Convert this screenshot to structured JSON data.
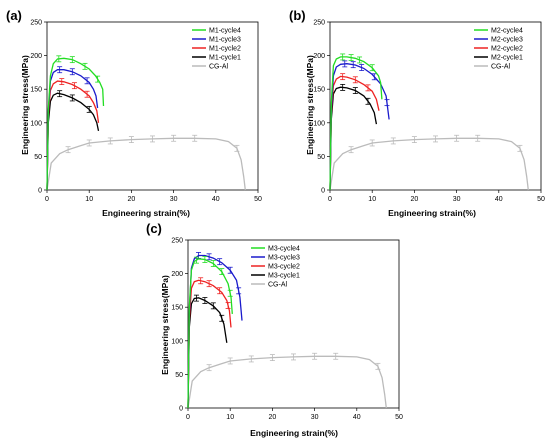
{
  "colors": {
    "cycle4": "#22dd22",
    "cycle3": "#1a1acc",
    "cycle2": "#ee2222",
    "cycle1": "#000000",
    "cg": "#bbbbbb"
  },
  "chart_data": [
    {
      "type": "line",
      "panel_label": "(a)",
      "xlabel": "Engineering strain(%)",
      "ylabel": "Engineering stress(MPa)",
      "xlim": [
        0,
        50
      ],
      "ylim": [
        0,
        250
      ],
      "xticks": [
        "0",
        "10",
        "20",
        "30",
        "40",
        "50"
      ],
      "yticks": [
        "0",
        "50",
        "100",
        "150",
        "200",
        "250"
      ],
      "legend_position": "top-right",
      "series": [
        {
          "name": "M1-cycle4",
          "color_key": "cycle4",
          "errorbars": [
            2.8,
            6,
            9,
            12
          ],
          "x": [
            0,
            0.3,
            0.8,
            1.5,
            2.5,
            4,
            6,
            8,
            10,
            11.5,
            12.5,
            13.2,
            13.4
          ],
          "y": [
            0,
            120,
            170,
            188,
            195,
            196,
            194,
            188,
            180,
            170,
            160,
            150,
            125
          ]
        },
        {
          "name": "M1-cycle3",
          "color_key": "cycle3",
          "errorbars": [
            3,
            6,
            9.5
          ],
          "x": [
            0,
            0.3,
            0.8,
            1.5,
            2.5,
            4,
            6,
            8,
            10,
            11,
            11.6,
            12
          ],
          "y": [
            0,
            115,
            162,
            175,
            179,
            179,
            176,
            170,
            160,
            150,
            140,
            122
          ]
        },
        {
          "name": "M1-cycle2",
          "color_key": "cycle2",
          "errorbars": [
            3.5,
            6.5,
            9.5
          ],
          "x": [
            0,
            0.3,
            0.8,
            1.5,
            2.5,
            4,
            6,
            8,
            10,
            11,
            11.8,
            12.2
          ],
          "y": [
            0,
            110,
            148,
            158,
            162,
            161,
            157,
            150,
            140,
            130,
            118,
            100
          ]
        },
        {
          "name": "M1-cycle1",
          "color_key": "cycle1",
          "errorbars": [
            3,
            6,
            10
          ],
          "x": [
            0,
            0.3,
            0.8,
            1.5,
            2.5,
            4,
            6,
            8,
            10,
            11,
            11.8,
            12.2
          ],
          "y": [
            0,
            100,
            132,
            141,
            144,
            142,
            137,
            130,
            120,
            112,
            100,
            88
          ]
        },
        {
          "name": "CG-Al",
          "color_key": "cg",
          "errorbars": [
            5,
            10,
            15,
            20,
            25,
            30,
            35,
            45
          ],
          "x": [
            0,
            1,
            3,
            5,
            8,
            10,
            15,
            20,
            25,
            30,
            35,
            40,
            43,
            45,
            46,
            46.6,
            47
          ],
          "y": [
            0,
            40,
            54,
            60,
            66,
            70,
            73,
            75,
            76,
            77,
            77,
            76,
            72,
            62,
            45,
            20,
            0
          ]
        }
      ]
    },
    {
      "type": "line",
      "panel_label": "(b)",
      "xlabel": "Engineering strain(%)",
      "ylabel": "Engineering stress(MPa)",
      "xlim": [
        0,
        50
      ],
      "ylim": [
        0,
        250
      ],
      "xticks": [
        "0",
        "10",
        "20",
        "30",
        "40",
        "50"
      ],
      "yticks": [
        "0",
        "50",
        "100",
        "150",
        "200",
        "250"
      ],
      "legend_position": "top-right",
      "series": [
        {
          "name": "M2-cycle4",
          "color_key": "cycle4",
          "errorbars": [
            3,
            5,
            7,
            10
          ],
          "x": [
            0,
            0.3,
            0.8,
            1.5,
            2.5,
            4,
            6,
            8,
            10,
            11.5,
            12,
            12.3
          ],
          "y": [
            0,
            130,
            185,
            195,
            198,
            198,
            196,
            191,
            182,
            170,
            160,
            135
          ]
        },
        {
          "name": "M2-cycle3",
          "color_key": "cycle3",
          "errorbars": [
            3.5,
            5.5,
            7.5,
            10.5,
            13.5
          ],
          "x": [
            0,
            0.3,
            0.8,
            1.5,
            2.5,
            4,
            6,
            8,
            10,
            12,
            13.3,
            14
          ],
          "y": [
            0,
            120,
            170,
            183,
            187,
            188,
            186,
            181,
            172,
            158,
            140,
            105
          ]
        },
        {
          "name": "M2-cycle2",
          "color_key": "cycle2",
          "errorbars": [
            3,
            6,
            9
          ],
          "x": [
            0,
            0.3,
            0.8,
            1.5,
            2.5,
            4,
            6,
            8,
            10,
            11,
            11.6
          ],
          "y": [
            0,
            115,
            155,
            165,
            169,
            168,
            164,
            157,
            147,
            135,
            118
          ]
        },
        {
          "name": "M2-cycle1",
          "color_key": "cycle1",
          "errorbars": [
            3,
            6,
            9
          ],
          "x": [
            0,
            0.3,
            0.8,
            1.5,
            2.5,
            4,
            6,
            8,
            9.5,
            10.5,
            11
          ],
          "y": [
            0,
            105,
            143,
            151,
            153,
            152,
            148,
            140,
            128,
            115,
            98
          ]
        },
        {
          "name": "CG-Al",
          "color_key": "cg",
          "errorbars": [
            5,
            10,
            15,
            20,
            25,
            30,
            35,
            45
          ],
          "x": [
            0,
            1,
            3,
            5,
            8,
            10,
            15,
            20,
            25,
            30,
            35,
            40,
            43,
            45,
            46,
            46.6,
            47
          ],
          "y": [
            0,
            40,
            54,
            60,
            66,
            70,
            73,
            75,
            76,
            77,
            77,
            76,
            72,
            62,
            45,
            20,
            0
          ]
        }
      ]
    },
    {
      "type": "line",
      "panel_label": "(c)",
      "xlabel": "Engineering strain(%)",
      "ylabel": "Engineering stress(MPa)",
      "xlim": [
        0,
        50
      ],
      "ylim": [
        0,
        250
      ],
      "xticks": [
        "0",
        "10",
        "20",
        "30",
        "40",
        "50"
      ],
      "yticks": [
        "0",
        "50",
        "100",
        "150",
        "200",
        "250"
      ],
      "legend_position": "top-right",
      "series": [
        {
          "name": "M3-cycle4",
          "color_key": "cycle4",
          "errorbars": [
            2,
            4,
            6,
            8,
            10
          ],
          "x": [
            0,
            0.3,
            0.8,
            1.5,
            2.5,
            4,
            6,
            8,
            9.5,
            10.2,
            10.5
          ],
          "y": [
            0,
            150,
            205,
            218,
            222,
            221,
            215,
            203,
            185,
            165,
            140
          ]
        },
        {
          "name": "M3-cycle3",
          "color_key": "cycle3",
          "errorbars": [
            2.5,
            5,
            7.5,
            10,
            12
          ],
          "x": [
            0,
            0.3,
            0.8,
            1.5,
            2.5,
            4,
            6,
            8,
            10,
            11.5,
            12.3,
            12.8
          ],
          "y": [
            0,
            140,
            208,
            222,
            227,
            227,
            223,
            216,
            205,
            190,
            165,
            130
          ]
        },
        {
          "name": "M3-cycle2",
          "color_key": "cycle2",
          "errorbars": [
            3,
            5,
            7.5,
            9.5
          ],
          "x": [
            0,
            0.3,
            0.8,
            1.5,
            2.5,
            4,
            6,
            8,
            9.2,
            9.8,
            10.2
          ],
          "y": [
            0,
            130,
            178,
            188,
            190,
            188,
            182,
            172,
            160,
            145,
            120
          ]
        },
        {
          "name": "M3-cycle1",
          "color_key": "cycle1",
          "errorbars": [
            2,
            4,
            6,
            8
          ],
          "x": [
            0,
            0.3,
            0.8,
            1.5,
            2.5,
            4,
            6,
            7.5,
            8.5,
            9.2
          ],
          "y": [
            0,
            120,
            155,
            163,
            164,
            160,
            152,
            142,
            125,
            97
          ]
        },
        {
          "name": "CG-Al",
          "color_key": "cg",
          "errorbars": [
            5,
            10,
            15,
            20,
            25,
            30,
            35,
            45
          ],
          "x": [
            0,
            1,
            3,
            5,
            8,
            10,
            15,
            20,
            25,
            30,
            35,
            40,
            43,
            45,
            46,
            46.6,
            47
          ],
          "y": [
            0,
            40,
            54,
            60,
            66,
            70,
            73,
            75,
            76,
            77,
            77,
            76,
            72,
            62,
            45,
            20,
            0
          ]
        }
      ]
    }
  ]
}
